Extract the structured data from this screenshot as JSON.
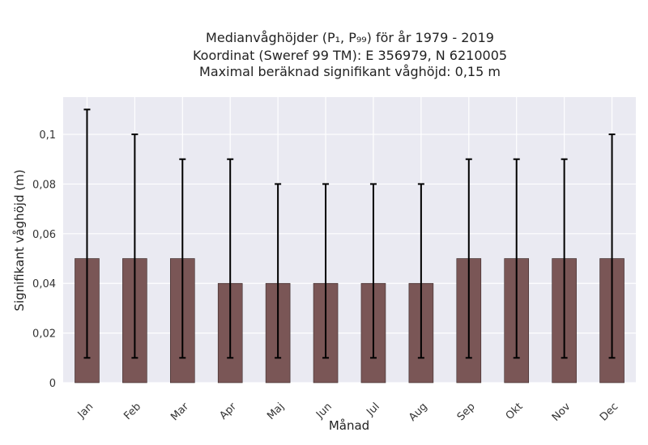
{
  "chart_data": {
    "type": "bar",
    "title_lines": [
      "Medianvåghöjder (P₁, P₉₉) för år 1979 - 2019",
      "Koordinat (Sweref 99 TM): E 356979, N 6210005",
      "Maximal beräknad signifikant våghöjd: 0,15 m"
    ],
    "xlabel": "Månad",
    "ylabel": "Signifikant våghöjd (m)",
    "categories": [
      "Jan",
      "Feb",
      "Mar",
      "Apr",
      "Maj",
      "Jun",
      "Jul",
      "Aug",
      "Sep",
      "Okt",
      "Nov",
      "Dec"
    ],
    "values": [
      0.05,
      0.05,
      0.05,
      0.04,
      0.04,
      0.04,
      0.04,
      0.04,
      0.05,
      0.05,
      0.05,
      0.05
    ],
    "p1": [
      0.01,
      0.01,
      0.01,
      0.01,
      0.01,
      0.01,
      0.01,
      0.01,
      0.01,
      0.01,
      0.01,
      0.01
    ],
    "p99": [
      0.11,
      0.1,
      0.09,
      0.09,
      0.08,
      0.08,
      0.08,
      0.08,
      0.09,
      0.09,
      0.09,
      0.1
    ],
    "ylim": [
      0,
      0.115
    ],
    "yticks": [
      0,
      0.02,
      0.04,
      0.06,
      0.08,
      0.1
    ],
    "ytick_labels": [
      "0",
      "0,02",
      "0,04",
      "0,06",
      "0,08",
      "0,1"
    ],
    "grid": true,
    "bar_color": "#7a5656",
    "background_color": "#eaeaf2",
    "error_bar_color": "#000000"
  }
}
